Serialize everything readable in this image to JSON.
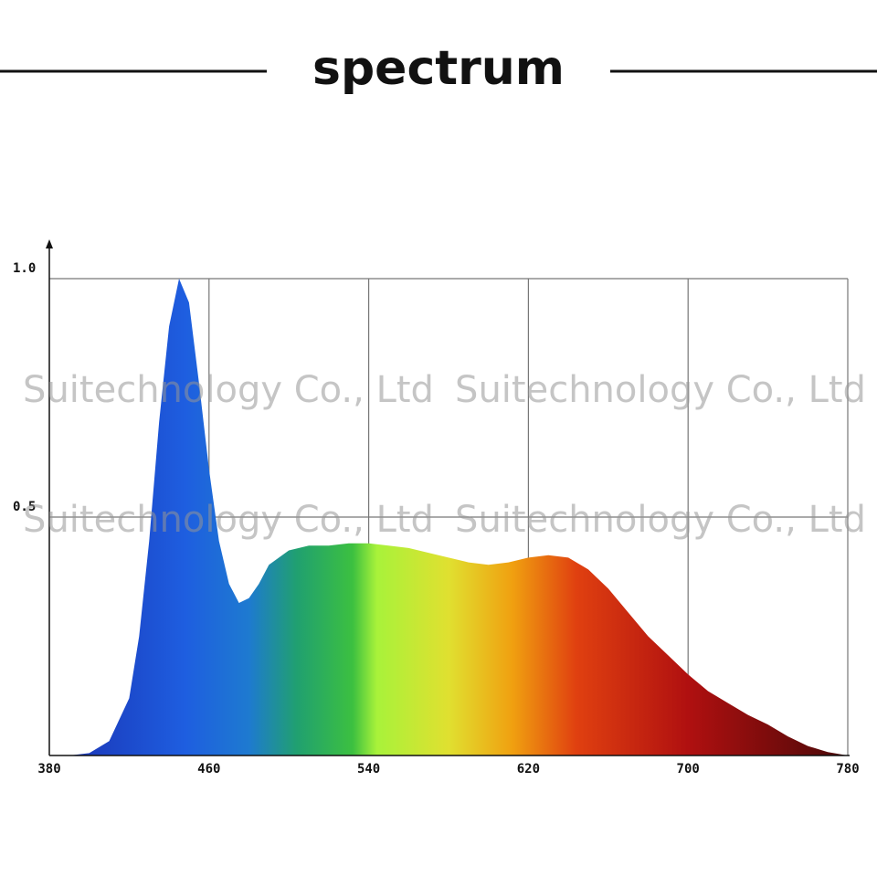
{
  "chart_data": {
    "type": "area",
    "title": "spectrum",
    "watermark": "Suitechnology Co., Ltd",
    "x": [
      380,
      390,
      400,
      410,
      420,
      425,
      430,
      435,
      440,
      445,
      450,
      455,
      460,
      465,
      470,
      475,
      480,
      485,
      490,
      500,
      510,
      520,
      530,
      540,
      550,
      560,
      570,
      580,
      590,
      600,
      610,
      620,
      630,
      640,
      650,
      660,
      670,
      680,
      690,
      700,
      710,
      720,
      730,
      740,
      750,
      760,
      770,
      780
    ],
    "values": [
      0,
      0,
      0.005,
      0.03,
      0.12,
      0.25,
      0.45,
      0.7,
      0.9,
      1.0,
      0.95,
      0.78,
      0.6,
      0.45,
      0.36,
      0.32,
      0.33,
      0.36,
      0.4,
      0.43,
      0.44,
      0.44,
      0.445,
      0.445,
      0.44,
      0.435,
      0.425,
      0.415,
      0.405,
      0.4,
      0.405,
      0.415,
      0.42,
      0.415,
      0.39,
      0.35,
      0.3,
      0.25,
      0.21,
      0.17,
      0.135,
      0.11,
      0.085,
      0.065,
      0.04,
      0.02,
      0.007,
      0
    ],
    "xlim": [
      380,
      780
    ],
    "ylim": [
      0,
      1
    ],
    "xticks": [
      380,
      460,
      540,
      620,
      700,
      780
    ],
    "yticks": [
      {
        "value": 0.5,
        "label": "0.5"
      },
      {
        "value": 1,
        "label": "1.0"
      }
    ],
    "grid": true
  }
}
